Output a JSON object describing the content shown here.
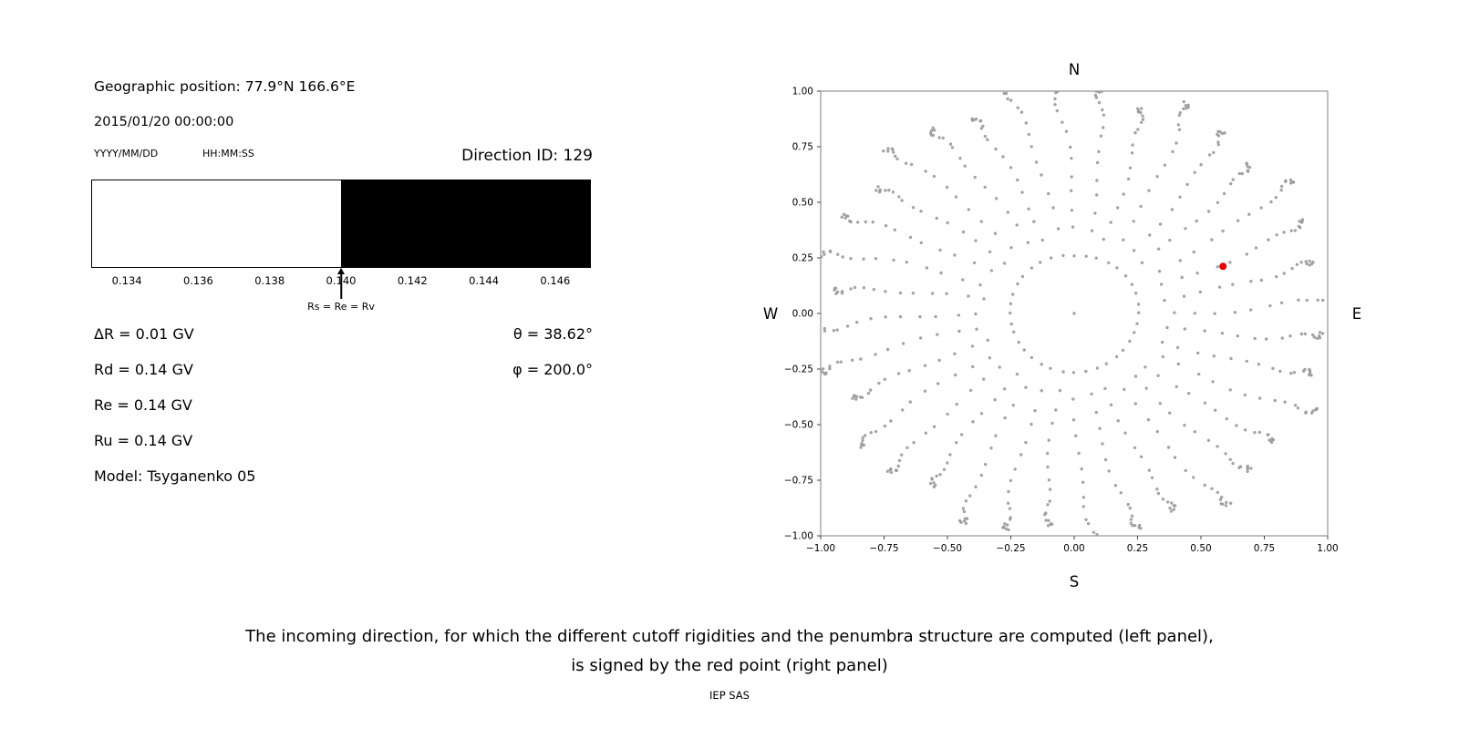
{
  "page": {
    "background": "#ffffff"
  },
  "header": {
    "geo_position": "Geographic position: 77.9°N 166.6°E",
    "datetime": "2015/01/20 00:00:00",
    "date_format_label": "YYYY/MM/DD",
    "time_format_label": "HH:MM:SS",
    "direction_id": "Direction ID: 129"
  },
  "cutoff_info": {
    "lines": [
      "ΔR = 0.01 GV",
      "Rd = 0.14 GV",
      "Re = 0.14 GV",
      "Ru = 0.14 GV",
      "Model: Tsyganenko 05"
    ],
    "angles": [
      "θ = 38.62°",
      "φ = 200.0°"
    ]
  },
  "footer": {
    "caption_line1": "The incoming direction, for which the different cutoff rigidities and the penumbra structure are computed (left panel),",
    "caption_line2": "is signed by the red point (right panel)",
    "credit": "IEP SAS"
  },
  "chart_data": [
    {
      "type": "bar",
      "name": "penumbra-structure",
      "description": "Penumbra structure: allowed (white) and forbidden (black) rigidity bands",
      "xlim": [
        0.133,
        0.147
      ],
      "x_ticks": [
        0.134,
        0.136,
        0.138,
        0.14,
        0.142,
        0.144,
        0.146
      ],
      "segments": [
        {
          "from": 0.133,
          "to": 0.14,
          "color": "#ffffff",
          "meaning": "allowed"
        },
        {
          "from": 0.14,
          "to": 0.147,
          "color": "#000000",
          "meaning": "forbidden"
        }
      ],
      "marker": {
        "x": 0.14,
        "label": "Rs = Re = Rv"
      }
    },
    {
      "type": "scatter",
      "name": "incoming-direction-map",
      "description": "Sky map of computed incoming directions; selected direction shown as red point",
      "xlim": [
        -1.0,
        1.0
      ],
      "ylim": [
        -1.0,
        1.0
      ],
      "x_ticks": [
        -1.0,
        -0.75,
        -0.5,
        -0.25,
        0.0,
        0.25,
        0.5,
        0.75,
        1.0
      ],
      "y_ticks": [
        -1.0,
        -0.75,
        -0.5,
        -0.25,
        0.0,
        0.25,
        0.5,
        0.75,
        1.0
      ],
      "grid": false,
      "compass_labels": {
        "top": "N",
        "bottom": "S",
        "left": "W",
        "right": "E"
      },
      "grid_points": {
        "pattern": "radial-direction-grid",
        "azimuth_start_deg": 0,
        "azimuth_step_deg": 10,
        "azimuth_count": 36,
        "zenith_deg_values": [
          15,
          22,
          27,
          32,
          37,
          42,
          47,
          52,
          57,
          62,
          66,
          70,
          74,
          77,
          80,
          83,
          85,
          87,
          88.5
        ],
        "radius_mapping": "sin(zenith)",
        "ray_length_jitter": 0.05,
        "curvature_deg_max": 5,
        "dot_color": "#9a9a9a",
        "center_dot": true
      },
      "highlight_point": {
        "x": 0.587,
        "y": 0.212,
        "theta_deg": 38.62,
        "phi_deg": 200.0,
        "color": "#e50000"
      }
    }
  ]
}
